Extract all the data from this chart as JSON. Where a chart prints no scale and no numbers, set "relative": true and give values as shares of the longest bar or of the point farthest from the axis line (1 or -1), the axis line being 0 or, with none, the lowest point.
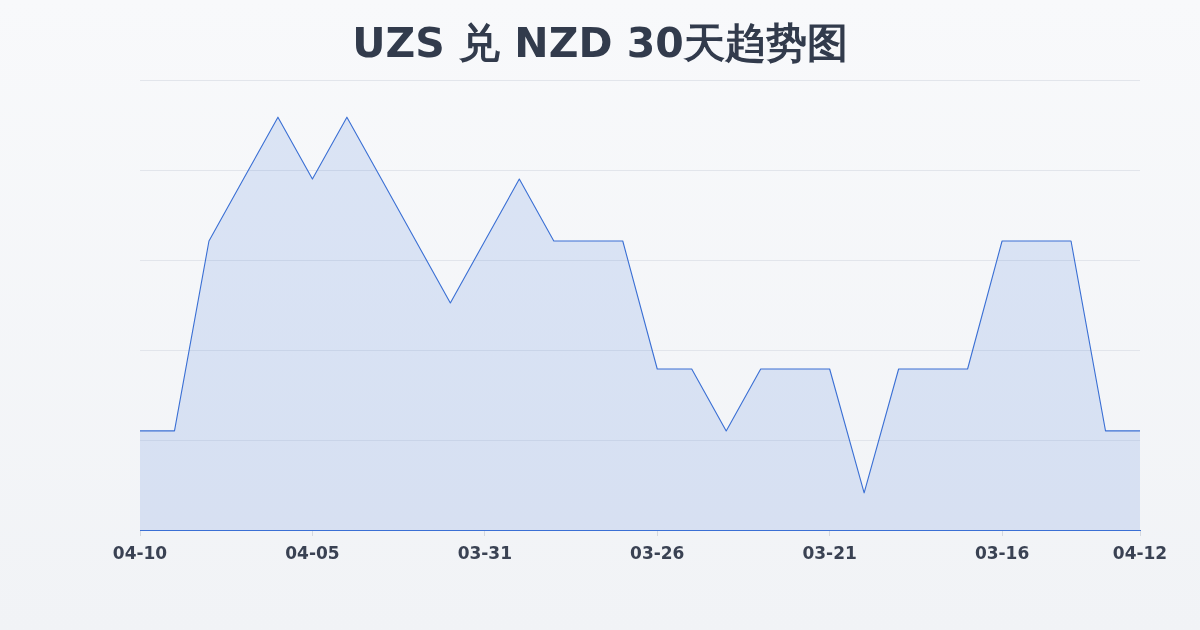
{
  "chart_data": {
    "type": "area",
    "title": "UZS 兑 NZD 30天趋势图",
    "relative": true,
    "categories": [
      "04-10",
      null,
      null,
      null,
      null,
      "04-05",
      null,
      null,
      null,
      null,
      "03-31",
      null,
      null,
      null,
      null,
      "03-26",
      null,
      null,
      null,
      null,
      "03-21",
      null,
      null,
      null,
      null,
      "03-16",
      null,
      null,
      null,
      "04-12"
    ],
    "values": [
      0.24,
      0.24,
      0.7,
      0.85,
      1,
      0.85,
      1,
      0.85,
      0.7,
      0.55,
      0.7,
      0.85,
      0.7,
      0.7,
      0.7,
      0.39,
      0.39,
      0.24,
      0.39,
      0.39,
      0.39,
      0.09,
      0.39,
      0.39,
      0.39,
      0.7,
      0.7,
      0.7,
      0.24,
      0.24
    ],
    "color": "#3a6fd4",
    "grid": "y",
    "legend": false,
    "marker": "none"
  }
}
